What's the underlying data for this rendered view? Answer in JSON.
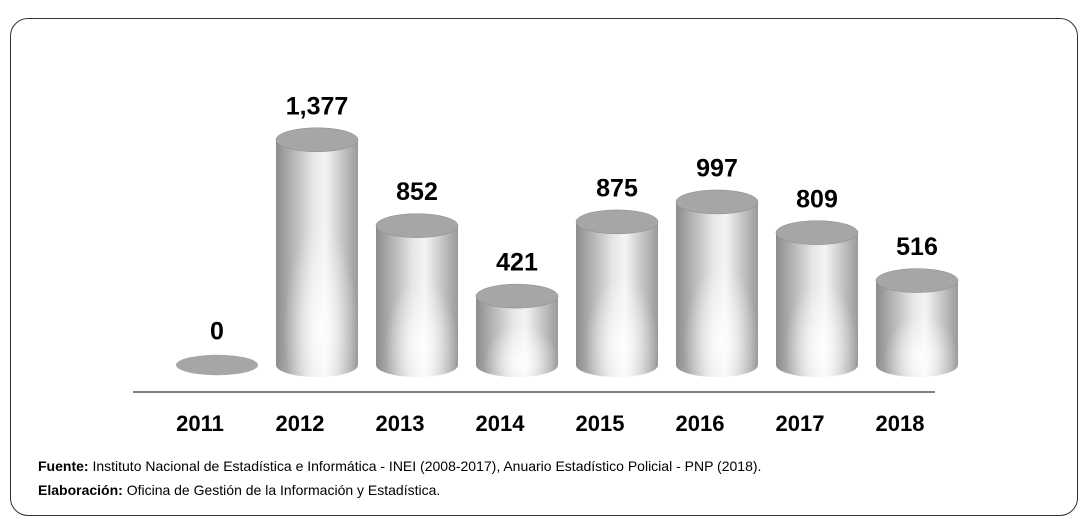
{
  "chart_data": {
    "type": "cylinder_bar",
    "categories": [
      "2011",
      "2012",
      "2013",
      "2014",
      "2015",
      "2016",
      "2017",
      "2018"
    ],
    "values": [
      0,
      1377,
      852,
      421,
      875,
      997,
      809,
      516
    ],
    "value_labels": [
      "0",
      "1,377",
      "852",
      "421",
      "875",
      "997",
      "809",
      "516"
    ],
    "color": "#a6a6a6",
    "ylim": [
      0,
      1400
    ]
  },
  "notes": {
    "source_label": "Fuente:",
    "source": "Instituto Nacional de Estadística e Informática - INEI (2008-2017), Anuario Estadístico Policial - PNP (2018).",
    "credit_label": "Elaboración:",
    "credit": "Oficina de Gestión de la Información y Estadística."
  }
}
